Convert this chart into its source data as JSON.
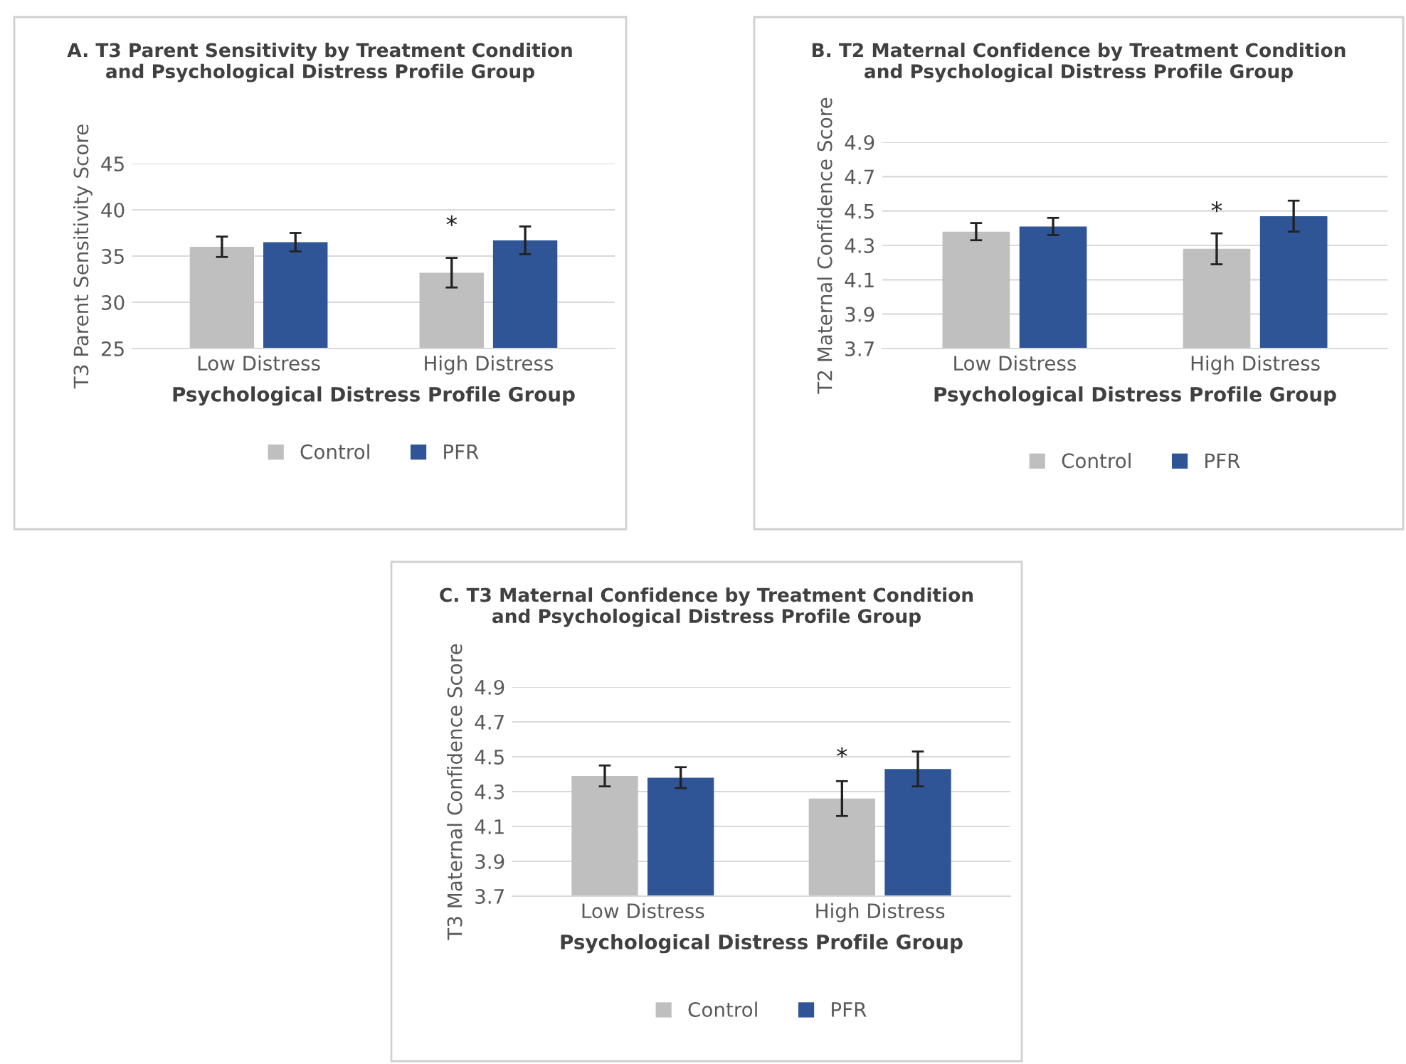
{
  "chart_data": [
    {
      "type": "bar",
      "title": "A. T3 Parent Sensitivity by Treatment Condition\nand Psychological Distress Profile Group",
      "xlabel": "Psychological Distress Profile Group",
      "ylabel": "T3 Parent Sensitivity Score",
      "categories": [
        "Low Distress",
        "High Distress"
      ],
      "series": [
        {
          "name": "Control",
          "color": "#bfbfbf",
          "values": [
            36.0,
            33.2
          ],
          "errors": [
            1.1,
            1.6
          ]
        },
        {
          "name": "PFR",
          "color": "#2f5597",
          "values": [
            36.5,
            36.7
          ],
          "errors": [
            1.0,
            1.5
          ]
        }
      ],
      "ylim": [
        25,
        45
      ],
      "yticks": [
        25,
        30,
        35,
        40,
        45
      ],
      "grid": "y",
      "legend": "bottom",
      "annotations": [
        "*"
      ]
    },
    {
      "type": "bar",
      "title": "B. T2 Maternal Confidence by Treatment Condition\nand Psychological Distress Profile Group",
      "xlabel": "Psychological Distress Profile Group",
      "ylabel": "T2 Maternal Confidence Score",
      "categories": [
        "Low Distress",
        "High Distress"
      ],
      "series": [
        {
          "name": "Control",
          "color": "#bfbfbf",
          "values": [
            4.38,
            4.28
          ],
          "errors": [
            0.05,
            0.09
          ]
        },
        {
          "name": "PFR",
          "color": "#2f5597",
          "values": [
            4.41,
            4.47
          ],
          "errors": [
            0.05,
            0.09
          ]
        }
      ],
      "ylim": [
        3.7,
        4.9
      ],
      "yticks": [
        3.7,
        3.9,
        4.1,
        4.3,
        4.5,
        4.7,
        4.9
      ],
      "grid": "y",
      "legend": "bottom",
      "annotations": [
        "*"
      ]
    },
    {
      "type": "bar",
      "title": "C. T3 Maternal Confidence by Treatment Condition\nand Psychological Distress Profile Group",
      "xlabel": "Psychological Distress Profile Group",
      "ylabel": "T3 Maternal Confidence Score",
      "categories": [
        "Low Distress",
        "High Distress"
      ],
      "series": [
        {
          "name": "Control",
          "color": "#bfbfbf",
          "values": [
            4.39,
            4.26
          ],
          "errors": [
            0.06,
            0.1
          ]
        },
        {
          "name": "PFR",
          "color": "#2f5597",
          "values": [
            4.38,
            4.43
          ],
          "errors": [
            0.06,
            0.1
          ]
        }
      ],
      "ylim": [
        3.7,
        4.9
      ],
      "yticks": [
        3.7,
        3.9,
        4.1,
        4.3,
        4.5,
        4.7,
        4.9
      ],
      "grid": "y",
      "legend": "bottom",
      "annotations": [
        "*"
      ]
    }
  ]
}
